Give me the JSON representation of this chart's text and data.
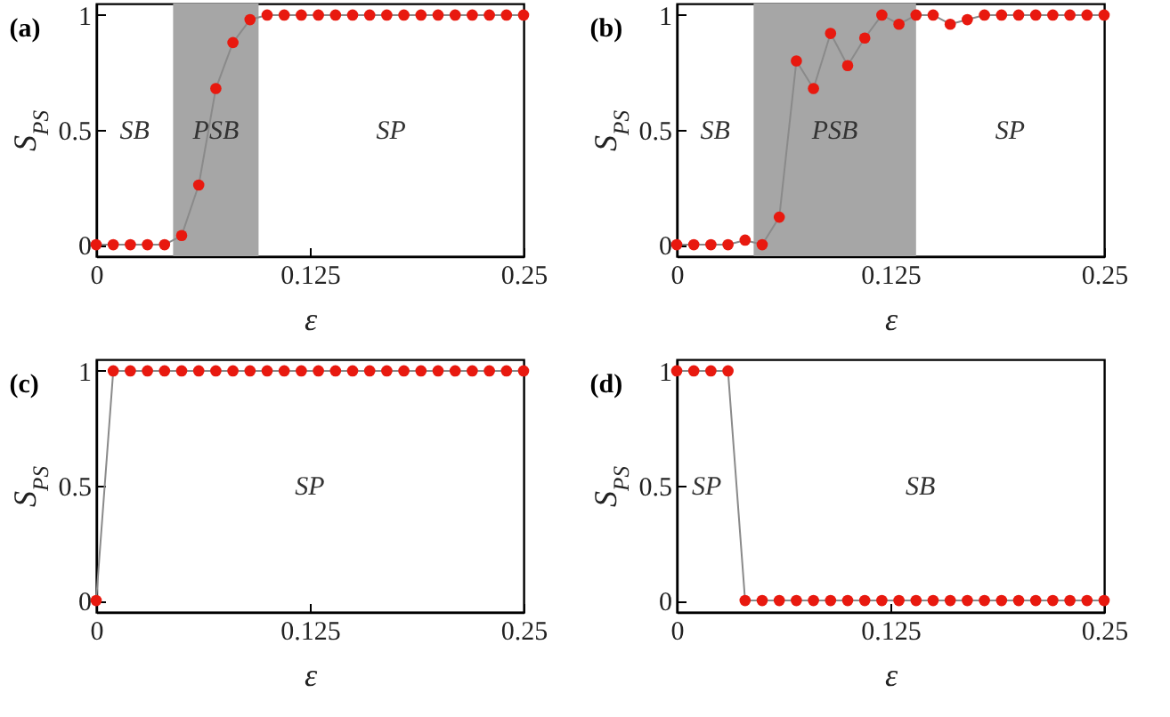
{
  "chart_data": [
    {
      "type": "line",
      "title": "(a)",
      "xlabel": "ε",
      "ylabel": "S$_{PS}$",
      "marker": "circle",
      "xlim": [
        0,
        0.25
      ],
      "ylim": [
        -0.05,
        1.05
      ],
      "xticks": [
        0,
        0.125,
        0.25
      ],
      "yticks": [
        0,
        0.5,
        1
      ],
      "x": [
        0,
        0.01,
        0.02,
        0.03,
        0.04,
        0.05,
        0.06,
        0.07,
        0.08,
        0.09,
        0.1,
        0.11,
        0.12,
        0.13,
        0.14,
        0.15,
        0.16,
        0.17,
        0.18,
        0.19,
        0.2,
        0.21,
        0.22,
        0.23,
        0.24,
        0.25
      ],
      "series": [
        {
          "color": "#e8190f",
          "values": [
            0,
            0,
            0,
            0,
            0,
            0.04,
            0.26,
            0.68,
            0.88,
            0.98,
            1,
            1,
            1,
            1,
            1,
            1,
            1,
            1,
            1,
            1,
            1,
            1,
            1,
            1,
            1,
            1
          ]
        }
      ],
      "bands": [
        {
          "axis": "x",
          "from": 0.045,
          "to": 0.095,
          "color": "#a6a6a6",
          "label": "PSB"
        }
      ],
      "annotations": [
        "SB",
        "SP"
      ]
    },
    {
      "type": "line",
      "title": "(b)",
      "xlabel": "ε",
      "ylabel": "S$_{PS}$",
      "marker": "circle",
      "xlim": [
        0,
        0.25
      ],
      "ylim": [
        -0.05,
        1.05
      ],
      "xticks": [
        0,
        0.125,
        0.25
      ],
      "yticks": [
        0,
        0.5,
        1
      ],
      "x": [
        0,
        0.01,
        0.02,
        0.03,
        0.04,
        0.05,
        0.06,
        0.07,
        0.08,
        0.09,
        0.1,
        0.11,
        0.12,
        0.13,
        0.14,
        0.15,
        0.16,
        0.17,
        0.18,
        0.19,
        0.2,
        0.21,
        0.22,
        0.23,
        0.24,
        0.25
      ],
      "series": [
        {
          "color": "#e8190f",
          "values": [
            0,
            0,
            0,
            0,
            0.02,
            0,
            0.12,
            0.8,
            0.68,
            0.92,
            0.78,
            0.9,
            1,
            0.96,
            1,
            1,
            0.96,
            0.98,
            1,
            1,
            1,
            1,
            1,
            1,
            1,
            1
          ]
        }
      ],
      "bands": [
        {
          "axis": "x",
          "from": 0.045,
          "to": 0.14,
          "color": "#a6a6a6",
          "label": "PSB"
        }
      ],
      "annotations": [
        "SB",
        "SP"
      ]
    },
    {
      "type": "line",
      "title": "(c)",
      "xlabel": "ε",
      "ylabel": "S$_{PS}$",
      "marker": "circle",
      "xlim": [
        0,
        0.25
      ],
      "ylim": [
        -0.05,
        1.05
      ],
      "xticks": [
        0,
        0.125,
        0.25
      ],
      "yticks": [
        0,
        0.5,
        1
      ],
      "x": [
        0,
        0.01,
        0.02,
        0.03,
        0.04,
        0.05,
        0.06,
        0.07,
        0.08,
        0.09,
        0.1,
        0.11,
        0.12,
        0.13,
        0.14,
        0.15,
        0.16,
        0.17,
        0.18,
        0.19,
        0.2,
        0.21,
        0.22,
        0.23,
        0.24,
        0.25
      ],
      "series": [
        {
          "color": "#e8190f",
          "values": [
            0,
            1,
            1,
            1,
            1,
            1,
            1,
            1,
            1,
            1,
            1,
            1,
            1,
            1,
            1,
            1,
            1,
            1,
            1,
            1,
            1,
            1,
            1,
            1,
            1,
            1
          ]
        }
      ],
      "annotations": [
        "SP"
      ]
    },
    {
      "type": "line",
      "title": "(d)",
      "xlabel": "ε",
      "ylabel": "S$_{PS}$",
      "marker": "circle",
      "xlim": [
        0,
        0.25
      ],
      "ylim": [
        -0.05,
        1.05
      ],
      "xticks": [
        0,
        0.125,
        0.25
      ],
      "yticks": [
        0,
        0.5,
        1
      ],
      "x": [
        0,
        0.01,
        0.02,
        0.03,
        0.04,
        0.05,
        0.06,
        0.07,
        0.08,
        0.09,
        0.1,
        0.11,
        0.12,
        0.13,
        0.14,
        0.15,
        0.16,
        0.17,
        0.18,
        0.19,
        0.2,
        0.21,
        0.22,
        0.23,
        0.24,
        0.25
      ],
      "series": [
        {
          "color": "#e8190f",
          "values": [
            1,
            1,
            1,
            1,
            0,
            0,
            0,
            0,
            0,
            0,
            0,
            0,
            0,
            0,
            0,
            0,
            0,
            0,
            0,
            0,
            0,
            0,
            0,
            0,
            0,
            0
          ]
        }
      ],
      "annotations": [
        "SP",
        "SB"
      ]
    }
  ]
}
